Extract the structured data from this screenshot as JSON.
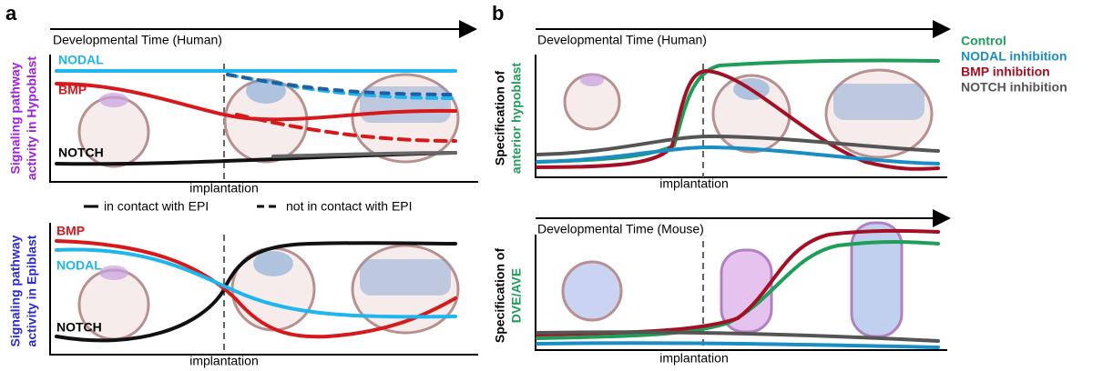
{
  "panel_a": {
    "label": "a",
    "top": {
      "time_axis": "Developmental Time (Human)",
      "y_label": [
        "Signaling pathway",
        "activity in Hypoblast"
      ],
      "curve_labels": [
        "NODAL",
        "BMP",
        "NOTCH"
      ],
      "x_label": "implantation"
    },
    "legend": [
      "in contact with EPI",
      "not in contact with EPI"
    ],
    "bottom": {
      "y_label": [
        "Signaling pathway",
        "activity in Epiblast"
      ],
      "curve_labels": [
        "BMP",
        "NODAL",
        "NOTCH"
      ],
      "x_label": "implantation"
    }
  },
  "panel_b": {
    "label": "b",
    "top": {
      "time_axis": "Developmental Time (Human)",
      "y_label": [
        "Specification of",
        "anterior hypoblast"
      ],
      "x_label": "implantation"
    },
    "legend": [
      "Control",
      "NODAL inhibition",
      "BMP inhibition",
      "NOTCH inhibition"
    ],
    "bottom": {
      "time_axis": "Developmental Time (Mouse)",
      "y_label": [
        "Specification of",
        "DVE/AVE"
      ],
      "x_label": "implantation"
    }
  }
}
